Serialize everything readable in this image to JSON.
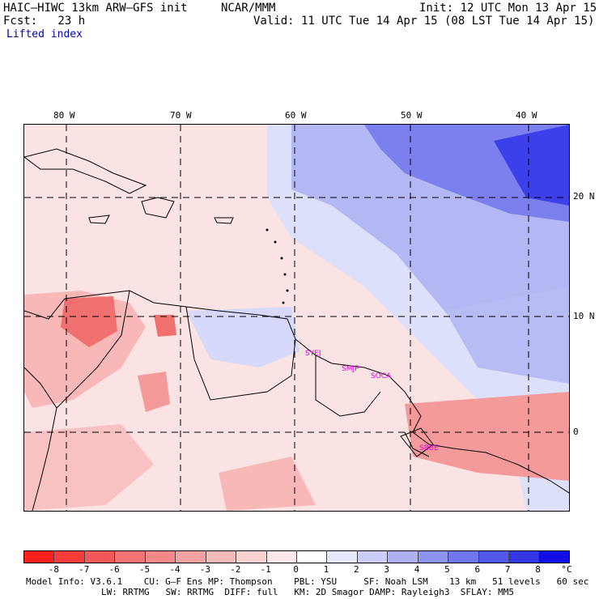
{
  "header": {
    "model_line": "HAIC–HIWC 13km ARW–GFS init",
    "org": "NCAR/MMM",
    "fcst": "Fcst:   23 h",
    "field": "Lifted index",
    "init": "Init: 12 UTC Mon 13 Apr 15",
    "valid": "Valid: 11 UTC Tue 14 Apr 15 (08 LST Tue 14 Apr 15)"
  },
  "map": {
    "lon_labels": [
      "80 W",
      "70 W",
      "60 W",
      "50 W",
      "40 W"
    ],
    "lat_labels": [
      "20 N",
      "10 N",
      "0"
    ],
    "sites": [
      "SYEJ",
      "SMJP",
      "SOCA",
      "SBBE"
    ],
    "colors": {
      "strong_red": "#f07070",
      "light_red": "#f8b8b8",
      "pale_red": "#fbe3e3",
      "pale_blue": "#dde0fb",
      "mid_blue": "#a8acf2",
      "deep_blue": "#3c40ea"
    }
  },
  "colorbar": {
    "ticks": [
      "-8",
      "-7",
      "-6",
      "-5",
      "-4",
      "-3",
      "-2",
      "-1",
      "0",
      "1",
      "2",
      "3",
      "4",
      "5",
      "6",
      "7",
      "8"
    ],
    "unit": "°C",
    "colors": [
      "#ff2020",
      "#ff3c3c",
      "#f45858",
      "#f47474",
      "#f48a8a",
      "#f5a2a2",
      "#f7baba",
      "#f9d2d2",
      "#fce8e8",
      "#ffffff",
      "#e6e8fc",
      "#c9cdf8",
      "#aeb2f5",
      "#8e94f2",
      "#7076ee",
      "#5258ea",
      "#3238e8",
      "#1010e6"
    ]
  },
  "footer": {
    "line1": "Model Info: V3.6.1    CU: G–F Ens MP: Thompson    PBL: YSU     SF: Noah LSM    13 km   51 levels   60 sec",
    "line2": "LW: RRTMG   SW: RRTMG  DIFF: full   KM: 2D Smagor DAMP: Rayleigh3  SFLAY: MM5"
  }
}
